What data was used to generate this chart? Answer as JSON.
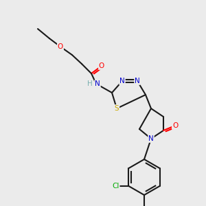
{
  "bg_color": "#ebebeb",
  "bond_color": "#1a1a1a",
  "atom_colors": {
    "O": "#ff0000",
    "N": "#0000cc",
    "S": "#ccaa00",
    "Cl": "#00aa00",
    "H": "#7ab0b0",
    "C": "#1a1a1a"
  }
}
